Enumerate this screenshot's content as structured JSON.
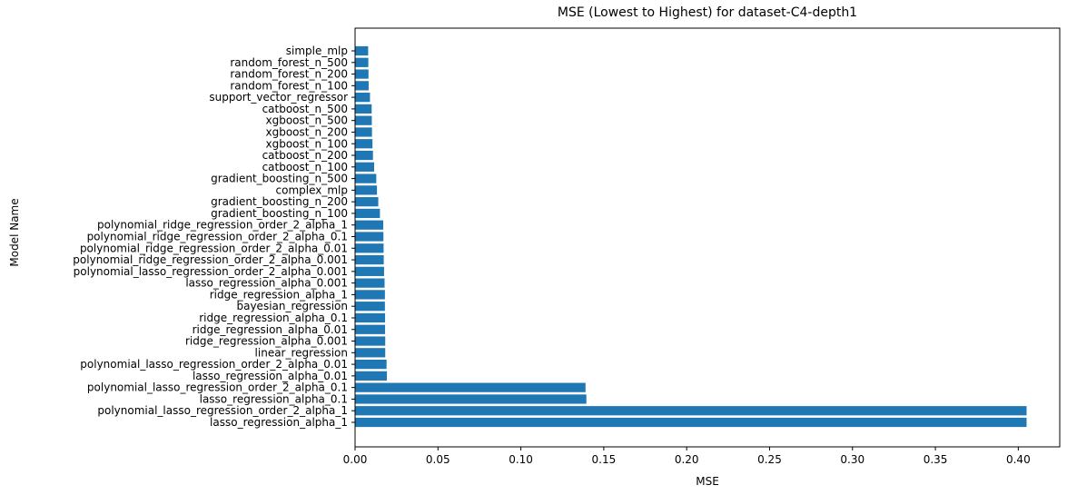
{
  "chart_data": {
    "type": "bar",
    "orientation": "horizontal",
    "title": "MSE (Lowest to Highest) for dataset-C4-depth1",
    "xlabel": "MSE",
    "ylabel": "Model Name",
    "xlim": [
      0.0,
      0.425
    ],
    "xticks": [
      "0.00",
      "0.05",
      "0.10",
      "0.15",
      "0.20",
      "0.25",
      "0.30",
      "0.35",
      "0.40"
    ],
    "grid": false,
    "bar_color": "#1f77b4",
    "categories": [
      "simple_mlp",
      "random_forest_n_500",
      "random_forest_n_200",
      "random_forest_n_100",
      "support_vector_regressor",
      "catboost_n_500",
      "xgboost_n_500",
      "xgboost_n_200",
      "xgboost_n_100",
      "catboost_n_200",
      "catboost_n_100",
      "gradient_boosting_n_500",
      "complex_mlp",
      "gradient_boosting_n_200",
      "gradient_boosting_n_100",
      "polynomial_ridge_regression_order_2_alpha_1",
      "polynomial_ridge_regression_order_2_alpha_0.1",
      "polynomial_ridge_regression_order_2_alpha_0.01",
      "polynomial_ridge_regression_order_2_alpha_0.001",
      "polynomial_lasso_regression_order_2_alpha_0.001",
      "lasso_regression_alpha_0.001",
      "ridge_regression_alpha_1",
      "bayesian_regression",
      "ridge_regression_alpha_0.1",
      "ridge_regression_alpha_0.01",
      "ridge_regression_alpha_0.001",
      "linear_regression",
      "polynomial_lasso_regression_order_2_alpha_0.01",
      "lasso_regression_alpha_0.01",
      "polynomial_lasso_regression_order_2_alpha_0.1",
      "lasso_regression_alpha_0.1",
      "polynomial_lasso_regression_order_2_alpha_1",
      "lasso_regression_alpha_1"
    ],
    "values": [
      0.0079,
      0.008,
      0.0081,
      0.0082,
      0.009,
      0.01,
      0.0101,
      0.0102,
      0.0105,
      0.0108,
      0.0115,
      0.0128,
      0.0132,
      0.014,
      0.015,
      0.017,
      0.0171,
      0.0172,
      0.0173,
      0.0175,
      0.0178,
      0.018,
      0.018,
      0.0181,
      0.0181,
      0.0182,
      0.0182,
      0.019,
      0.0192,
      0.139,
      0.1395,
      0.405,
      0.405
    ]
  }
}
